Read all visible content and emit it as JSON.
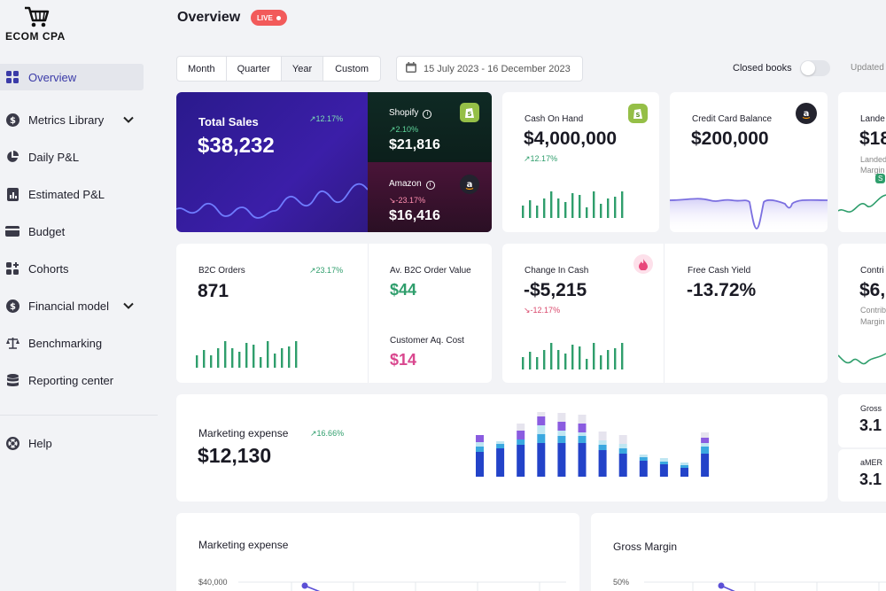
{
  "brand": {
    "name": "ECOM CPA"
  },
  "sidebar": {
    "items": [
      {
        "label": "Overview",
        "icon": "grid-icon",
        "active": true
      },
      {
        "label": "Metrics Library",
        "icon": "dollar-icon",
        "chevron": true
      },
      {
        "label": "Daily P&L",
        "icon": "pie-chart-icon"
      },
      {
        "label": "Estimated P&L",
        "icon": "bar-report-icon"
      },
      {
        "label": "Budget",
        "icon": "card-icon"
      },
      {
        "label": "Cohorts",
        "icon": "cohorts-icon"
      },
      {
        "label": "Financial model",
        "icon": "dollar-icon",
        "chevron": true
      },
      {
        "label": "Benchmarking",
        "icon": "scale-icon"
      },
      {
        "label": "Reporting center",
        "icon": "database-icon"
      }
    ],
    "help": {
      "label": "Help",
      "icon": "lifebuoy-icon"
    }
  },
  "header": {
    "title": "Overview",
    "live_label": "LIVE",
    "periods": [
      "Month",
      "Quarter",
      "Year",
      "Custom"
    ],
    "selected_period": "Year",
    "date_range": "15 July 2023 - 16 December 2023",
    "closed_books_label": "Closed books",
    "updated_label": "Updated"
  },
  "colors": {
    "accent": "#3b3ba8",
    "positive": "#2f9e6c",
    "negative": "#d9476b",
    "live": "#f25a5a",
    "bar_green": "#2f9e6c",
    "bar_blue": "#2343c9"
  },
  "cards": {
    "total_sales": {
      "label": "Total Sales",
      "value": "$38,232",
      "change": "12.17%"
    },
    "shopify": {
      "label": "Shopify",
      "value": "$21,816",
      "change": "2.10%"
    },
    "amazon": {
      "label": "Amazon",
      "value": "$16,416",
      "change": "-23.17%"
    },
    "cash_on_hand": {
      "label": "Cash On Hand",
      "value": "$4,000,000",
      "change": "12.17%"
    },
    "credit_card": {
      "label": "Credit Card Balance",
      "value": "$200,000"
    },
    "landed": {
      "label": "Lande",
      "value": "$18",
      "sub1": "Landed",
      "sub2": "Margin"
    },
    "b2c_orders": {
      "label": "B2C Orders",
      "value": "871",
      "change": "23.17%"
    },
    "b2c_aov": {
      "label": "Av. B2C Order Value",
      "value": "$44"
    },
    "cac": {
      "label": "Customer Aq. Cost",
      "value": "$14"
    },
    "change_in_cash": {
      "label": "Change In Cash",
      "value": "-$5,215",
      "change": "-12.17%"
    },
    "free_cash_yield": {
      "label": "Free Cash Yield",
      "value": "-13.72%"
    },
    "contrib": {
      "label": "Contri",
      "value": "$6,",
      "sub1": "Contrib",
      "sub2": "Margin"
    },
    "marketing_expense": {
      "label": "Marketing expense",
      "value": "$12,130",
      "change": "16.66%"
    },
    "gross": {
      "label": "Gross",
      "value": "3.1"
    },
    "amer": {
      "label": "aMER",
      "value": "3.1"
    },
    "marketing_chart": {
      "label": "Marketing expense",
      "axis_label": "$40,000"
    },
    "gross_margin_chart": {
      "label": "Gross Margin",
      "axis_label": "50%"
    }
  },
  "spark_bars": {
    "b2c_orders": [
      14,
      20,
      14,
      22,
      30,
      22,
      18,
      28,
      26,
      12,
      30,
      16,
      22,
      24,
      30
    ],
    "cash_on_hand": [
      14,
      20,
      14,
      22,
      30,
      22,
      18,
      28,
      26,
      12,
      30,
      16,
      22,
      24,
      30
    ],
    "change_in_cash": [
      14,
      20,
      14,
      22,
      30,
      22,
      18,
      28,
      26,
      12,
      30,
      16,
      22,
      24,
      30
    ]
  },
  "marketing_stack": [
    [
      28,
      6,
      5,
      8,
      0
    ],
    [
      32,
      5,
      3,
      0,
      0
    ],
    [
      36,
      6,
      0,
      10,
      8
    ],
    [
      38,
      10,
      10,
      10,
      10
    ],
    [
      38,
      8,
      6,
      10,
      10
    ],
    [
      38,
      8,
      4,
      10,
      10
    ],
    [
      30,
      6,
      5,
      0,
      10
    ],
    [
      26,
      6,
      5,
      0,
      10
    ],
    [
      18,
      4,
      3,
      0,
      0
    ],
    [
      14,
      3,
      4,
      0,
      0
    ],
    [
      10,
      3,
      3,
      0,
      0
    ],
    [
      26,
      8,
      4,
      6,
      6
    ],
    [
      14,
      3,
      3,
      0,
      4
    ]
  ]
}
